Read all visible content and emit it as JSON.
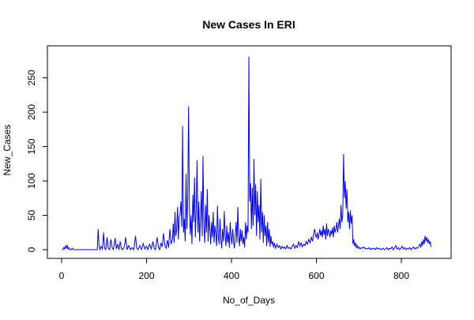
{
  "chart_data": {
    "type": "line",
    "title": "New Cases In ERI",
    "xlabel": "No_of_Days",
    "ylabel": "New_Cases",
    "xlim": [
      0,
      880
    ],
    "ylim": [
      0,
      285
    ],
    "xticks": [
      0,
      200,
      400,
      600,
      800
    ],
    "yticks": [
      0,
      50,
      100,
      150,
      200,
      250
    ],
    "grid": false,
    "line_color": "#0000ff",
    "series": [
      {
        "points": [
          [
            1,
            0
          ],
          [
            3,
            0
          ],
          [
            5,
            3
          ],
          [
            7,
            1
          ],
          [
            9,
            5
          ],
          [
            11,
            2
          ],
          [
            13,
            7
          ],
          [
            15,
            1
          ],
          [
            17,
            3
          ],
          [
            19,
            0
          ],
          [
            22,
            0
          ],
          [
            25,
            2
          ],
          [
            28,
            0
          ],
          [
            30,
            0
          ],
          [
            40,
            0
          ],
          [
            50,
            0
          ],
          [
            60,
            0
          ],
          [
            70,
            0
          ],
          [
            80,
            0
          ],
          [
            84,
            0
          ],
          [
            86,
            30
          ],
          [
            88,
            8
          ],
          [
            90,
            0
          ],
          [
            93,
            5
          ],
          [
            96,
            1
          ],
          [
            99,
            25
          ],
          [
            101,
            2
          ],
          [
            104,
            0
          ],
          [
            107,
            18
          ],
          [
            110,
            2
          ],
          [
            113,
            0
          ],
          [
            116,
            15
          ],
          [
            119,
            3
          ],
          [
            122,
            0
          ],
          [
            126,
            17
          ],
          [
            129,
            1
          ],
          [
            132,
            8
          ],
          [
            135,
            0
          ],
          [
            138,
            12
          ],
          [
            141,
            1
          ],
          [
            144,
            0
          ],
          [
            148,
            5
          ],
          [
            151,
            18
          ],
          [
            154,
            0
          ],
          [
            158,
            6
          ],
          [
            162,
            0
          ],
          [
            166,
            3
          ],
          [
            170,
            0
          ],
          [
            174,
            20
          ],
          [
            177,
            2
          ],
          [
            180,
            0
          ],
          [
            184,
            6
          ],
          [
            188,
            0
          ],
          [
            192,
            9
          ],
          [
            196,
            1
          ],
          [
            200,
            5
          ],
          [
            203,
            0
          ],
          [
            207,
            8
          ],
          [
            211,
            1
          ],
          [
            215,
            12
          ],
          [
            218,
            2
          ],
          [
            221,
            0
          ],
          [
            225,
            18
          ],
          [
            228,
            3
          ],
          [
            231,
            0
          ],
          [
            234,
            10
          ],
          [
            237,
            4
          ],
          [
            240,
            24
          ],
          [
            243,
            6
          ],
          [
            246,
            2
          ],
          [
            249,
            14
          ],
          [
            252,
            3
          ],
          [
            255,
            30
          ],
          [
            258,
            8
          ],
          [
            261,
            15
          ],
          [
            263,
            38
          ],
          [
            265,
            10
          ],
          [
            267,
            55
          ],
          [
            269,
            20
          ],
          [
            271,
            30
          ],
          [
            273,
            62
          ],
          [
            275,
            15
          ],
          [
            277,
            48
          ],
          [
            279,
            52
          ],
          [
            281,
            70
          ],
          [
            283,
            33
          ],
          [
            285,
            180
          ],
          [
            287,
            25
          ],
          [
            289,
            45
          ],
          [
            291,
            12
          ],
          [
            293,
            110
          ],
          [
            295,
            30
          ],
          [
            297,
            75
          ],
          [
            299,
            208
          ],
          [
            301,
            60
          ],
          [
            303,
            22
          ],
          [
            305,
            50
          ],
          [
            307,
            8
          ],
          [
            309,
            80
          ],
          [
            311,
            40
          ],
          [
            313,
            105
          ],
          [
            315,
            18
          ],
          [
            317,
            60
          ],
          [
            319,
            130
          ],
          [
            321,
            25
          ],
          [
            323,
            70
          ],
          [
            325,
            12
          ],
          [
            327,
            45
          ],
          [
            329,
            85
          ],
          [
            331,
            20
          ],
          [
            333,
            136
          ],
          [
            335,
            35
          ],
          [
            337,
            10
          ],
          [
            339,
            65
          ],
          [
            341,
            25
          ],
          [
            343,
            88
          ],
          [
            345,
            12
          ],
          [
            347,
            50
          ],
          [
            349,
            30
          ],
          [
            351,
            8
          ],
          [
            353,
            40
          ],
          [
            355,
            18
          ],
          [
            357,
            55
          ],
          [
            359,
            10
          ],
          [
            361,
            35
          ],
          [
            363,
            22
          ],
          [
            365,
            5
          ],
          [
            367,
            64
          ],
          [
            369,
            20
          ],
          [
            371,
            8
          ],
          [
            373,
            45
          ],
          [
            375,
            15
          ],
          [
            377,
            2
          ],
          [
            379,
            30
          ],
          [
            381,
            12
          ],
          [
            383,
            56
          ],
          [
            385,
            20
          ],
          [
            387,
            5
          ],
          [
            389,
            35
          ],
          [
            391,
            10
          ],
          [
            393,
            25
          ],
          [
            395,
            3
          ],
          [
            397,
            40
          ],
          [
            399,
            18
          ],
          [
            401,
            8
          ],
          [
            403,
            30
          ],
          [
            405,
            12
          ],
          [
            407,
            2
          ],
          [
            409,
            22
          ],
          [
            411,
            40
          ],
          [
            413,
            10
          ],
          [
            415,
            62
          ],
          [
            417,
            20
          ],
          [
            419,
            5
          ],
          [
            421,
            30
          ],
          [
            423,
            12
          ],
          [
            425,
            28
          ],
          [
            427,
            8
          ],
          [
            429,
            18
          ],
          [
            431,
            3
          ],
          [
            433,
            40
          ],
          [
            435,
            15
          ],
          [
            437,
            35
          ],
          [
            439,
            25
          ],
          [
            441,
            281
          ],
          [
            443,
            70
          ],
          [
            445,
            97
          ],
          [
            447,
            30
          ],
          [
            449,
            90
          ],
          [
            451,
            35
          ],
          [
            453,
            132
          ],
          [
            455,
            50
          ],
          [
            457,
            95
          ],
          [
            459,
            20
          ],
          [
            461,
            85
          ],
          [
            463,
            40
          ],
          [
            465,
            65
          ],
          [
            467,
            15
          ],
          [
            469,
            103
          ],
          [
            471,
            25
          ],
          [
            473,
            55
          ],
          [
            475,
            10
          ],
          [
            477,
            50
          ],
          [
            479,
            20
          ],
          [
            481,
            35
          ],
          [
            483,
            5
          ],
          [
            485,
            40
          ],
          [
            487,
            10
          ],
          [
            489,
            30
          ],
          [
            491,
            4
          ],
          [
            493,
            20
          ],
          [
            495,
            8
          ],
          [
            497,
            12
          ],
          [
            499,
            3
          ],
          [
            501,
            10
          ],
          [
            504,
            2
          ],
          [
            507,
            8
          ],
          [
            510,
            3
          ],
          [
            513,
            6
          ],
          [
            516,
            1
          ],
          [
            519,
            5
          ],
          [
            522,
            2
          ],
          [
            525,
            4
          ],
          [
            528,
            1
          ],
          [
            531,
            6
          ],
          [
            534,
            2
          ],
          [
            537,
            3
          ],
          [
            540,
            1
          ],
          [
            543,
            5
          ],
          [
            546,
            8
          ],
          [
            549,
            2
          ],
          [
            552,
            6
          ],
          [
            555,
            3
          ],
          [
            558,
            12
          ],
          [
            561,
            5
          ],
          [
            564,
            10
          ],
          [
            567,
            4
          ],
          [
            570,
            8
          ],
          [
            573,
            6
          ],
          [
            576,
            12
          ],
          [
            579,
            8
          ],
          [
            582,
            15
          ],
          [
            585,
            10
          ],
          [
            588,
            18
          ],
          [
            591,
            12
          ],
          [
            594,
            25
          ],
          [
            596,
            30
          ],
          [
            598,
            20
          ],
          [
            600,
            18
          ],
          [
            602,
            25
          ],
          [
            604,
            15
          ],
          [
            606,
            22
          ],
          [
            608,
            30
          ],
          [
            610,
            20
          ],
          [
            612,
            28
          ],
          [
            614,
            18
          ],
          [
            616,
            35
          ],
          [
            618,
            22
          ],
          [
            620,
            30
          ],
          [
            622,
            15
          ],
          [
            624,
            38
          ],
          [
            626,
            20
          ],
          [
            628,
            30
          ],
          [
            630,
            25
          ],
          [
            632,
            18
          ],
          [
            634,
            28
          ],
          [
            636,
            22
          ],
          [
            638,
            32
          ],
          [
            640,
            18
          ],
          [
            642,
            35
          ],
          [
            644,
            25
          ],
          [
            646,
            30
          ],
          [
            648,
            40
          ],
          [
            650,
            25
          ],
          [
            652,
            35
          ],
          [
            654,
            45
          ],
          [
            656,
            30
          ],
          [
            658,
            65
          ],
          [
            660,
            40
          ],
          [
            662,
            50
          ],
          [
            664,
            139
          ],
          [
            666,
            75
          ],
          [
            668,
            100
          ],
          [
            670,
            60
          ],
          [
            672,
            88
          ],
          [
            674,
            40
          ],
          [
            676,
            55
          ],
          [
            678,
            30
          ],
          [
            680,
            57
          ],
          [
            682,
            38
          ],
          [
            684,
            50
          ],
          [
            686,
            8
          ],
          [
            688,
            15
          ],
          [
            690,
            5
          ],
          [
            692,
            10
          ],
          [
            694,
            3
          ],
          [
            696,
            6
          ],
          [
            698,
            2
          ],
          [
            700,
            4
          ],
          [
            703,
            1
          ],
          [
            706,
            3
          ],
          [
            709,
            2
          ],
          [
            712,
            4
          ],
          [
            715,
            1
          ],
          [
            718,
            2
          ],
          [
            721,
            1
          ],
          [
            724,
            3
          ],
          [
            727,
            0
          ],
          [
            730,
            2
          ],
          [
            733,
            1
          ],
          [
            736,
            2
          ],
          [
            739,
            0
          ],
          [
            742,
            3
          ],
          [
            745,
            1
          ],
          [
            748,
            2
          ],
          [
            751,
            0
          ],
          [
            754,
            1
          ],
          [
            757,
            2
          ],
          [
            760,
            0
          ],
          [
            763,
            1
          ],
          [
            766,
            3
          ],
          [
            769,
            0
          ],
          [
            772,
            2
          ],
          [
            775,
            1
          ],
          [
            778,
            4
          ],
          [
            781,
            0
          ],
          [
            784,
            2
          ],
          [
            787,
            6
          ],
          [
            790,
            1
          ],
          [
            793,
            3
          ],
          [
            796,
            0
          ],
          [
            799,
            2
          ],
          [
            802,
            5
          ],
          [
            805,
            1
          ],
          [
            808,
            3
          ],
          [
            811,
            0
          ],
          [
            814,
            2
          ],
          [
            817,
            1
          ],
          [
            820,
            3
          ],
          [
            823,
            0
          ],
          [
            826,
            2
          ],
          [
            829,
            4
          ],
          [
            832,
            1
          ],
          [
            835,
            3
          ],
          [
            838,
            2
          ],
          [
            841,
            5
          ],
          [
            844,
            8
          ],
          [
            846,
            3
          ],
          [
            848,
            12
          ],
          [
            850,
            6
          ],
          [
            852,
            15
          ],
          [
            854,
            8
          ],
          [
            856,
            20
          ],
          [
            858,
            12
          ],
          [
            860,
            18
          ],
          [
            862,
            10
          ],
          [
            864,
            15
          ],
          [
            866,
            8
          ],
          [
            868,
            12
          ],
          [
            870,
            4
          ]
        ]
      }
    ]
  }
}
